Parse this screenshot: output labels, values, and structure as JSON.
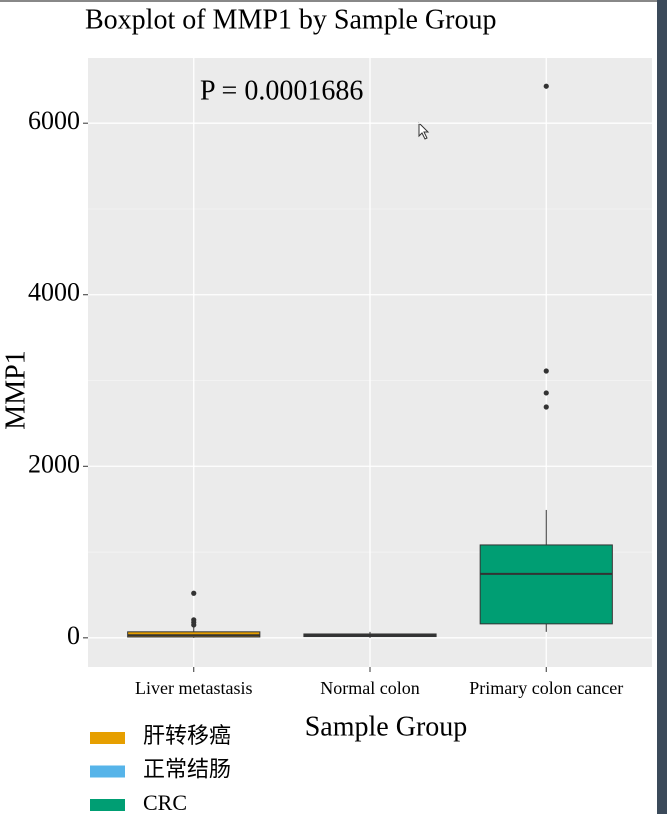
{
  "chart_data": {
    "type": "box",
    "title": "Boxplot of MMP1 by Sample Group",
    "annotation": "P = 0.0001686",
    "x_label": "Sample Group",
    "y_label": "MMP1",
    "categories": [
      "Liver metastasis",
      "Normal colon",
      "Primary colon cancer"
    ],
    "colors": [
      "#E69F00",
      "#56B4E9",
      "#009E73"
    ],
    "boxes": [
      {
        "min": 0,
        "q1": 10,
        "median": 30,
        "q3": 70,
        "max": 130,
        "outliers": [
          150,
          180,
          210,
          520
        ]
      },
      {
        "min": 0,
        "q1": 15,
        "median": 30,
        "q3": 45,
        "max": 70,
        "outliers": []
      },
      {
        "min": 70,
        "q1": 163,
        "median": 746,
        "q3": 1083,
        "max": 1491,
        "outliers": [
          2691,
          2855,
          3111,
          6431
        ]
      }
    ],
    "legend": [
      "肝转移癌",
      "正常结肠",
      "CRC"
    ],
    "ylim": [
      -340,
      6760
    ],
    "yticks": [
      0,
      2000,
      4000,
      6000
    ],
    "yminorticks": [
      1000,
      3000,
      5000
    ],
    "grid": true
  }
}
